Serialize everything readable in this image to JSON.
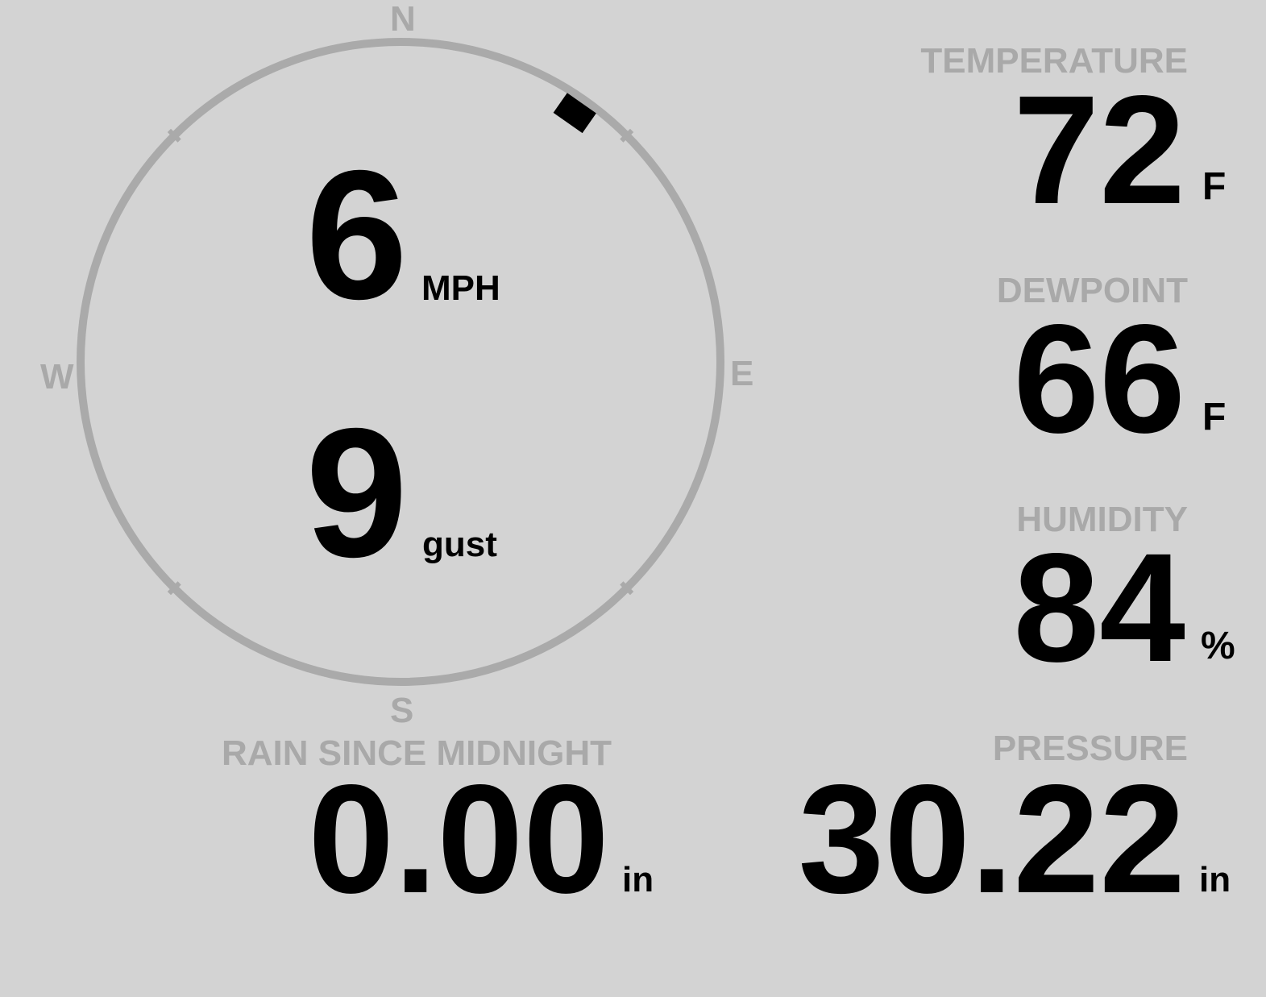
{
  "compass": {
    "labels": {
      "n": "N",
      "s": "S",
      "e": "E",
      "w": "W"
    },
    "wind_direction_deg": 35,
    "ring_color": "#aaaaaa",
    "indicator_color": "#000000"
  },
  "wind": {
    "speed": "6",
    "speed_unit": "MPH",
    "gust": "9",
    "gust_unit": "gust"
  },
  "temperature": {
    "label": "TEMPERATURE",
    "value": "72",
    "unit": "F"
  },
  "dewpoint": {
    "label": "DEWPOINT",
    "value": "66",
    "unit": "F"
  },
  "humidity": {
    "label": "HUMIDITY",
    "value": "84",
    "unit": "%"
  },
  "rain": {
    "label": "RAIN SINCE MIDNIGHT",
    "value": "0.00",
    "unit": "in"
  },
  "pressure": {
    "label": "PRESSURE",
    "value": "30.22",
    "unit": "in"
  },
  "colors": {
    "background": "#d3d3d3",
    "label": "#a9a9a9",
    "value": "#000000"
  }
}
